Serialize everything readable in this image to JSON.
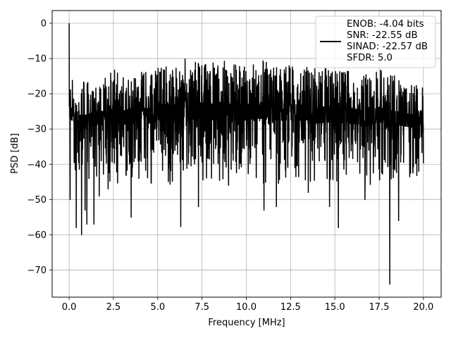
{
  "chart_data": {
    "type": "line",
    "xlabel": "Frequency [MHz]",
    "ylabel": "PSD [dB]",
    "xlim": [
      -0.96,
      21.0
    ],
    "ylim": [
      -77.7,
      3.6
    ],
    "xticks": [
      0.0,
      2.5,
      5.0,
      7.5,
      10.0,
      12.5,
      15.0,
      17.5,
      20.0
    ],
    "xtick_labels": [
      "0.0",
      "2.5",
      "5.0",
      "7.5",
      "10.0",
      "12.5",
      "15.0",
      "17.5",
      "20.0"
    ],
    "yticks": [
      0,
      -10,
      -20,
      -30,
      -40,
      -50,
      -60,
      -70
    ],
    "ytick_labels": [
      "0",
      "−10",
      "−20",
      "−30",
      "−40",
      "−50",
      "−60",
      "−70"
    ],
    "grid": true,
    "legend": {
      "placement": "top-right",
      "entries": [
        "ENOB: -4.04 bits",
        "SNR: -22.55 dB",
        "SINAD: -22.57 dB",
        "SFDR: 5.0"
      ]
    },
    "series": [
      {
        "color": "#000000",
        "style": "dense noise floor",
        "x_range": [
          0.0,
          20.0
        ],
        "upper_envelope": [
          [
            0.0,
            -15
          ],
          [
            0.5,
            -17
          ],
          [
            1.0,
            -16
          ],
          [
            1.5,
            -15
          ],
          [
            2.0,
            -15
          ],
          [
            2.5,
            -13
          ],
          [
            3.0,
            -15
          ],
          [
            3.5,
            -13
          ],
          [
            4.0,
            -14
          ],
          [
            4.5,
            -13
          ],
          [
            5.0,
            -12
          ],
          [
            5.5,
            -11
          ],
          [
            6.0,
            -12
          ],
          [
            6.5,
            -10
          ],
          [
            7.0,
            -10
          ],
          [
            7.5,
            -11
          ],
          [
            8.0,
            -11
          ],
          [
            8.5,
            -10
          ],
          [
            9.0,
            -11
          ],
          [
            9.5,
            -12
          ],
          [
            10.0,
            -11
          ],
          [
            10.5,
            -11
          ],
          [
            11.0,
            -10
          ],
          [
            11.5,
            -12
          ],
          [
            12.0,
            -11
          ],
          [
            12.5,
            -12
          ],
          [
            13.0,
            -11
          ],
          [
            13.5,
            -12
          ],
          [
            14.0,
            -13
          ],
          [
            14.5,
            -12
          ],
          [
            15.0,
            -12
          ],
          [
            15.5,
            -14
          ],
          [
            16.0,
            -13
          ],
          [
            16.5,
            -14
          ],
          [
            17.0,
            -14
          ],
          [
            17.5,
            -13
          ],
          [
            18.0,
            -14
          ],
          [
            18.5,
            -15
          ],
          [
            19.0,
            -16
          ],
          [
            19.5,
            -17
          ],
          [
            20.0,
            -16
          ]
        ],
        "lower_envelope": [
          [
            0.0,
            -36
          ],
          [
            0.5,
            -40
          ],
          [
            1.0,
            -41
          ],
          [
            1.5,
            -40
          ],
          [
            2.0,
            -40
          ],
          [
            2.5,
            -41
          ],
          [
            3.0,
            -40
          ],
          [
            3.5,
            -41
          ],
          [
            4.0,
            -40
          ],
          [
            4.5,
            -41
          ],
          [
            5.0,
            -40
          ],
          [
            5.5,
            -41
          ],
          [
            6.0,
            -41
          ],
          [
            6.5,
            -40
          ],
          [
            7.0,
            -41
          ],
          [
            7.5,
            -40
          ],
          [
            8.0,
            -41
          ],
          [
            8.5,
            -41
          ],
          [
            9.0,
            -41
          ],
          [
            9.5,
            -40
          ],
          [
            10.0,
            -41
          ],
          [
            10.5,
            -40
          ],
          [
            11.0,
            -41
          ],
          [
            11.5,
            -40
          ],
          [
            12.0,
            -41
          ],
          [
            12.5,
            -40
          ],
          [
            13.0,
            -41
          ],
          [
            13.5,
            -40
          ],
          [
            14.0,
            -41
          ],
          [
            14.5,
            -41
          ],
          [
            15.0,
            -41
          ],
          [
            15.5,
            -40
          ],
          [
            16.0,
            -41
          ],
          [
            16.5,
            -41
          ],
          [
            17.0,
            -41
          ],
          [
            17.5,
            -40
          ],
          [
            18.0,
            -41
          ],
          [
            18.5,
            -40
          ],
          [
            19.0,
            -40
          ],
          [
            19.5,
            -40
          ],
          [
            20.0,
            -38
          ]
        ],
        "peaks": [
          [
            0.0,
            0.0
          ]
        ],
        "notable_dips": [
          [
            0.05,
            -50
          ],
          [
            0.4,
            -58
          ],
          [
            0.7,
            -60
          ],
          [
            0.9,
            -53
          ],
          [
            1.0,
            -57
          ],
          [
            1.4,
            -57
          ],
          [
            1.7,
            -49
          ],
          [
            2.2,
            -47
          ],
          [
            3.5,
            -55
          ],
          [
            6.3,
            -57.7
          ],
          [
            7.3,
            -52
          ],
          [
            9.0,
            -46
          ],
          [
            11.0,
            -53
          ],
          [
            11.7,
            -52
          ],
          [
            13.5,
            -48
          ],
          [
            14.7,
            -52
          ],
          [
            15.2,
            -58
          ],
          [
            16.7,
            -50
          ],
          [
            18.1,
            -74
          ],
          [
            18.6,
            -56
          ]
        ]
      }
    ]
  }
}
